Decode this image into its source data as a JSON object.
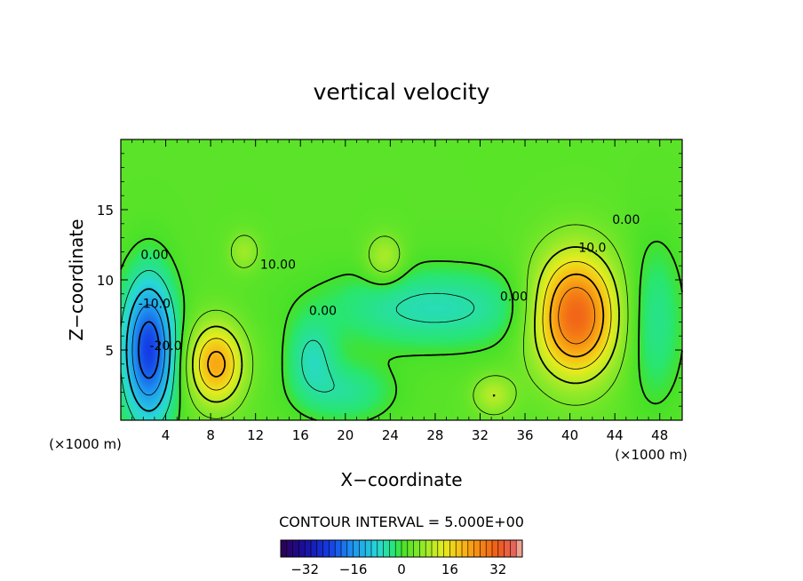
{
  "chart_data": {
    "type": "heatmap",
    "title": "vertical velocity",
    "xlabel": "X−coordinate",
    "ylabel": "Z−coordinate",
    "x_unit_label": "(×1000 m)",
    "x_unit_label_right": "(×1000 m)",
    "xlim": [
      0,
      50
    ],
    "ylim": [
      0,
      20
    ],
    "x_ticks": [
      "4",
      "8",
      "12",
      "16",
      "20",
      "24",
      "28",
      "32",
      "36",
      "40",
      "44",
      "48"
    ],
    "x_tick_values": [
      4,
      8,
      12,
      16,
      20,
      24,
      28,
      32,
      36,
      40,
      44,
      48
    ],
    "y_ticks": [
      "5",
      "10",
      "15"
    ],
    "y_tick_values": [
      5,
      10,
      15
    ],
    "contour_interval_text": "CONTOUR INTERVAL = 5.000E+00",
    "contour_interval": 5.0,
    "colorbar": {
      "range": [
        -40,
        40
      ],
      "ticks": [
        "−32",
        "−16",
        "0",
        "16",
        "32"
      ],
      "tick_values": [
        -32,
        -16,
        0,
        16,
        32
      ]
    },
    "contour_labels": [
      {
        "text": "0.00",
        "x": 3,
        "z": 11.5
      },
      {
        "text": "10.00",
        "x": 14,
        "z": 10.8
      },
      {
        "text": "0.00",
        "x": 18,
        "z": 7.5
      },
      {
        "text": "0.00",
        "x": 35,
        "z": 8.5
      },
      {
        "text": "10.0",
        "x": 42,
        "z": 12
      },
      {
        "text": "0.00",
        "x": 45,
        "z": 14
      },
      {
        "text": "-10.0",
        "x": 3,
        "z": 8
      },
      {
        "text": "-20.0",
        "x": 4,
        "z": 5
      }
    ],
    "features": [
      {
        "kind": "updraft",
        "x": 40.5,
        "z": 7.5,
        "peak": 30,
        "sx": 2.6,
        "sz": 3.0
      },
      {
        "kind": "updraft",
        "x": 8.5,
        "z": 4.0,
        "peak": 20,
        "sx": 1.7,
        "sz": 2.0
      },
      {
        "kind": "updraft",
        "x": 23.5,
        "z": 11.5,
        "peak": 8,
        "sx": 1.2,
        "sz": 1.2
      },
      {
        "kind": "updraft",
        "x": 33.2,
        "z": 1.8,
        "peak": 8,
        "sx": 1.3,
        "sz": 1.0
      },
      {
        "kind": "updraft",
        "x": 11,
        "z": 12,
        "peak": 6,
        "sx": 1.0,
        "sz": 1.0
      },
      {
        "kind": "downdraft",
        "x": 2.5,
        "z": 5.0,
        "peak": -26,
        "sx": 1.6,
        "sz": 3.5
      },
      {
        "kind": "downdraft",
        "x": 28,
        "z": 8,
        "peak": -8,
        "sx": 7,
        "sz": 2.0
      },
      {
        "kind": "downdraft",
        "x": 17,
        "z": 4.5,
        "peak": -7,
        "sx": 1.5,
        "sz": 1.8
      },
      {
        "kind": "downdraft",
        "x": 20,
        "z": 2.0,
        "peak": -6,
        "sx": 3.0,
        "sz": 1.5
      },
      {
        "kind": "downdraft",
        "x": 47.5,
        "z": 7.0,
        "peak": -6,
        "sx": 1.8,
        "sz": 4.0
      }
    ]
  }
}
